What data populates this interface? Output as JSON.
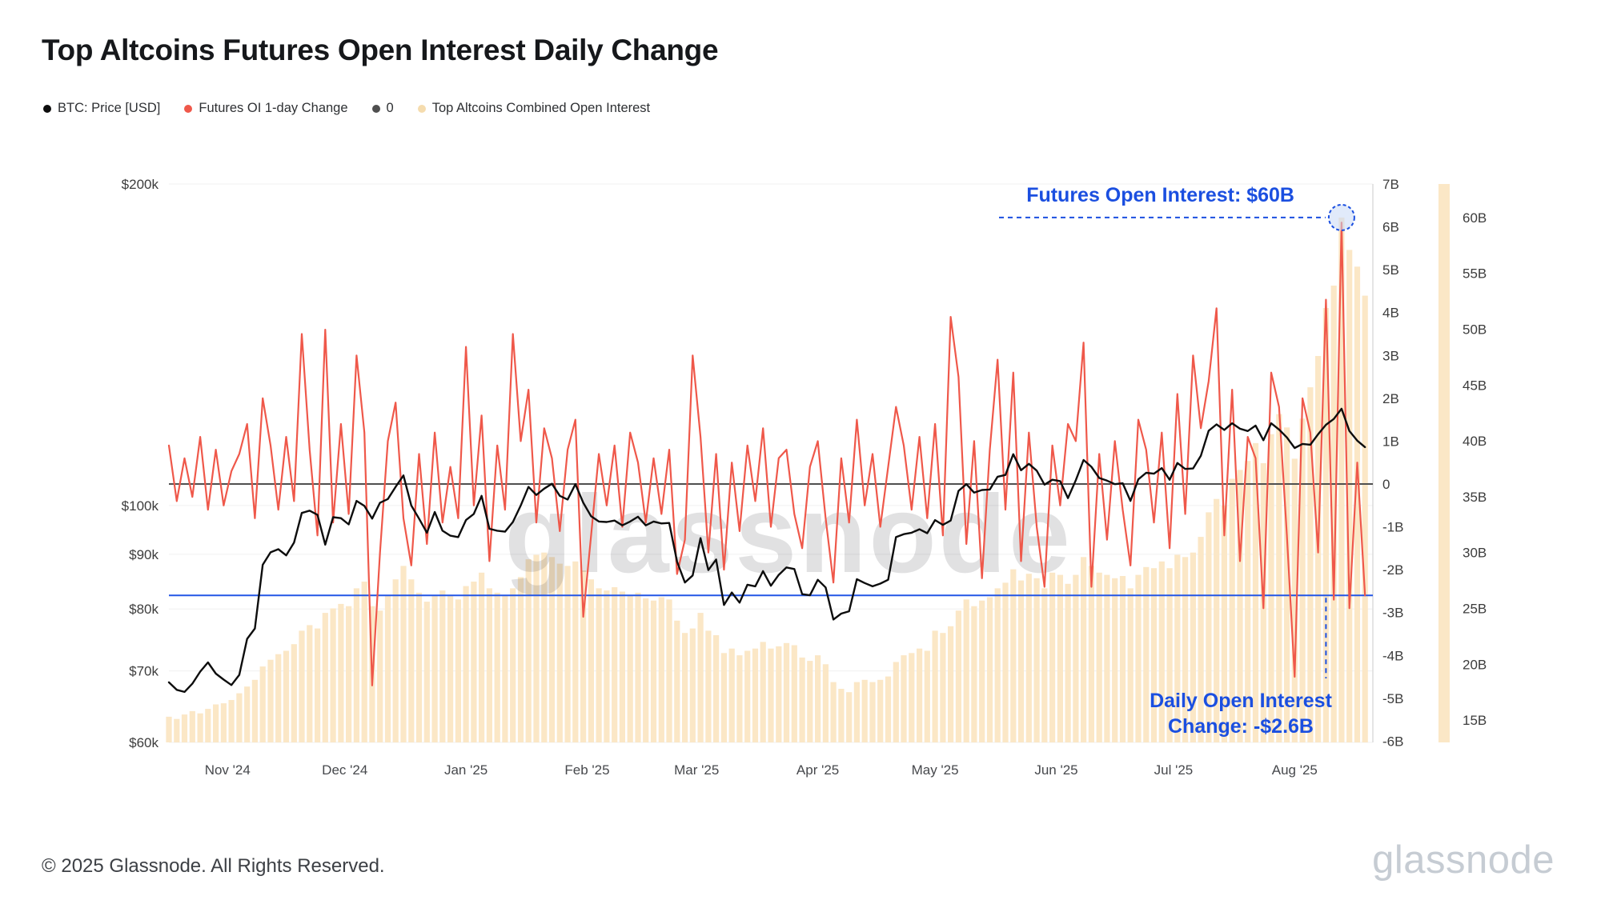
{
  "page": {
    "title": "Top Altcoins Futures Open Interest Daily Change",
    "footer_copyright": "© 2025 Glassnode. All Rights Reserved.",
    "brand_logo": "glassnode",
    "watermark": "glassnode"
  },
  "colors": {
    "btc_line": "#0d0d0d",
    "oi_change_line": "#ef584a",
    "zero_line": "#4f4f4f",
    "oi_bars": "#fbe7c6",
    "annotation_blue": "#1b4fe0",
    "threshold_line": "#2356e6",
    "axis_text": "#3c3c3c",
    "grid": "#f0f0f0",
    "plot_edge": "#dcdcdc",
    "watermark": "rgba(40,45,50,0.14)",
    "peak_marker_fill": "#c8d9f6"
  },
  "legend": {
    "items": [
      {
        "label": "BTC: Price [USD]",
        "color": "#0d0d0d"
      },
      {
        "label": "Futures OI 1-day Change",
        "color": "#ef584a"
      },
      {
        "label": "0",
        "color": "#4f4f4f"
      },
      {
        "label": "Top Altcoins Combined Open Interest",
        "color": "#f5dcae"
      }
    ]
  },
  "chart_data": {
    "type": "composite",
    "title": "Top Altcoins Futures Open Interest Daily Change",
    "x": {
      "total_days": 308,
      "step_days": 2,
      "start": "Oct 17 '24",
      "end": "Aug 21 '25",
      "month_ticks": [
        {
          "label": "Nov '24",
          "day": 15
        },
        {
          "label": "Dec '24",
          "day": 45
        },
        {
          "label": "Jan '25",
          "day": 76
        },
        {
          "label": "Feb '25",
          "day": 107
        },
        {
          "label": "Mar '25",
          "day": 135
        },
        {
          "label": "Apr '25",
          "day": 166
        },
        {
          "label": "May '25",
          "day": 196
        },
        {
          "label": "Jun '25",
          "day": 227
        },
        {
          "label": "Jul '25",
          "day": 257
        },
        {
          "label": "Aug '25",
          "day": 288
        }
      ]
    },
    "axes": {
      "price": {
        "side": "left",
        "scale": "log",
        "min": 60,
        "max": 200,
        "ticks": [
          {
            "v": 200,
            "label": "$200k"
          },
          {
            "v": 100,
            "label": "$100k"
          },
          {
            "v": 90,
            "label": "$90k"
          },
          {
            "v": 80,
            "label": "$80k"
          },
          {
            "v": 70,
            "label": "$70k"
          },
          {
            "v": 60,
            "label": "$60k"
          }
        ]
      },
      "change": {
        "side": "right",
        "scale": "linear",
        "min": -6.03,
        "max": 7,
        "ticks": [
          {
            "v": 7,
            "label": "7B"
          },
          {
            "v": 6,
            "label": "6B"
          },
          {
            "v": 5,
            "label": "5B"
          },
          {
            "v": 4,
            "label": "4B"
          },
          {
            "v": 3,
            "label": "3B"
          },
          {
            "v": 2,
            "label": "2B"
          },
          {
            "v": 1,
            "label": "1B"
          },
          {
            "v": 0,
            "label": "0"
          },
          {
            "v": -1,
            "label": "-1B"
          },
          {
            "v": -2,
            "label": "-2B"
          },
          {
            "v": -3,
            "label": "-3B"
          },
          {
            "v": -4,
            "label": "-4B"
          },
          {
            "v": -5,
            "label": "-5B"
          },
          {
            "v": -6,
            "label": "-6B"
          }
        ]
      },
      "oi": {
        "side": "far-right",
        "scale": "linear",
        "min": 13,
        "max": 63,
        "ticks": [
          {
            "v": 60,
            "label": "60B"
          },
          {
            "v": 55,
            "label": "55B"
          },
          {
            "v": 50,
            "label": "50B"
          },
          {
            "v": 45,
            "label": "45B"
          },
          {
            "v": 40,
            "label": "40B"
          },
          {
            "v": 35,
            "label": "35B"
          },
          {
            "v": 30,
            "label": "30B"
          },
          {
            "v": 25,
            "label": "25B"
          },
          {
            "v": 20,
            "label": "20B"
          },
          {
            "v": 15,
            "label": "15B"
          }
        ]
      }
    },
    "series": [
      {
        "key": "oi-bars",
        "name": "Top Altcoins Combined Open Interest",
        "type": "bar",
        "axis": "oi",
        "color": "#fbe7c6",
        "values": [
          15.3,
          15.1,
          15.5,
          15.8,
          15.6,
          16.0,
          16.4,
          16.5,
          16.8,
          17.4,
          18.0,
          18.6,
          19.8,
          20.4,
          20.9,
          21.2,
          21.8,
          23.0,
          23.5,
          23.2,
          24.6,
          25.0,
          25.4,
          25.2,
          26.8,
          27.4,
          25.2,
          24.8,
          26.2,
          27.6,
          28.8,
          27.6,
          26.4,
          25.6,
          26.2,
          26.6,
          26.2,
          25.8,
          27.0,
          27.4,
          28.2,
          26.8,
          26.4,
          26.2,
          26.8,
          27.8,
          29.4,
          29.8,
          30.0,
          29.6,
          29.0,
          28.8,
          29.2,
          28.4,
          27.6,
          26.8,
          26.6,
          26.9,
          26.5,
          26.2,
          26.4,
          25.9,
          25.7,
          26.0,
          25.8,
          23.9,
          22.8,
          23.2,
          24.6,
          23.0,
          22.6,
          21.0,
          21.4,
          20.8,
          21.2,
          21.4,
          22.0,
          21.4,
          21.6,
          21.9,
          21.7,
          20.6,
          20.3,
          20.8,
          20.0,
          18.4,
          17.8,
          17.5,
          18.4,
          18.6,
          18.4,
          18.6,
          18.9,
          20.2,
          20.8,
          21.0,
          21.4,
          21.2,
          23.0,
          22.8,
          23.4,
          24.8,
          25.8,
          25.2,
          25.7,
          26.0,
          26.8,
          27.3,
          28.5,
          27.5,
          28.1,
          27.7,
          26.8,
          28.2,
          28.0,
          27.2,
          28.0,
          29.6,
          28.8,
          28.2,
          28.0,
          27.7,
          27.9,
          26.8,
          28.0,
          28.7,
          28.6,
          29.2,
          28.6,
          29.8,
          29.6,
          30.0,
          31.4,
          33.6,
          34.8,
          34.2,
          36.6,
          37.4,
          38.2,
          39.8,
          38.0,
          40.6,
          42.4,
          41.2,
          38.4,
          42.0,
          44.8,
          47.6,
          51.9,
          53.9,
          60.0,
          57.1,
          55.6,
          53.0
        ]
      },
      {
        "key": "oi-change-line",
        "name": "Futures OI 1-day Change",
        "type": "line",
        "axis": "change",
        "color": "#ef584a",
        "width": 2.2,
        "values": [
          0.9,
          -0.4,
          0.6,
          -0.3,
          1.1,
          -0.6,
          0.8,
          -0.5,
          0.3,
          0.7,
          1.4,
          -0.8,
          2.0,
          0.9,
          -0.6,
          1.1,
          -0.4,
          3.5,
          0.8,
          -1.2,
          3.6,
          -0.9,
          1.4,
          -0.7,
          3.0,
          1.2,
          -4.7,
          -1.6,
          1.0,
          1.9,
          -0.8,
          -1.9,
          0.7,
          -1.4,
          1.2,
          -0.9,
          0.4,
          -0.8,
          3.2,
          -0.5,
          1.6,
          -1.8,
          0.9,
          -0.6,
          3.5,
          1.0,
          2.2,
          -0.9,
          1.3,
          0.6,
          -1.1,
          0.8,
          1.5,
          -3.1,
          -1.2,
          0.7,
          -0.5,
          0.9,
          -1.0,
          1.2,
          0.5,
          -0.9,
          0.6,
          -0.7,
          0.8,
          -2.1,
          -1.3,
          3.0,
          1.1,
          -1.6,
          0.7,
          -2.0,
          0.5,
          -1.1,
          0.9,
          -0.4,
          1.3,
          -1.0,
          0.6,
          0.8,
          -0.7,
          -1.5,
          0.4,
          1.0,
          -0.8,
          -2.3,
          0.6,
          -0.9,
          1.5,
          -0.5,
          0.7,
          -1.0,
          0.4,
          1.8,
          0.9,
          -0.6,
          1.1,
          -0.8,
          1.4,
          -1.2,
          3.9,
          2.5,
          -1.4,
          1.0,
          -2.2,
          0.8,
          2.9,
          -0.6,
          2.6,
          -1.8,
          1.2,
          -1.0,
          -2.4,
          0.9,
          -0.5,
          1.4,
          1.0,
          3.3,
          -2.4,
          0.7,
          -1.3,
          1.0,
          -0.6,
          -1.9,
          1.5,
          0.8,
          -0.9,
          1.2,
          -1.5,
          2.1,
          -0.7,
          3.0,
          1.3,
          2.4,
          4.1,
          -1.2,
          2.2,
          -1.8,
          1.1,
          0.6,
          -2.9,
          2.6,
          1.8,
          -1.2,
          -4.5,
          2.0,
          1.2,
          -1.6,
          4.3,
          -2.7,
          6.1,
          -2.9,
          0.5,
          -2.6
        ]
      },
      {
        "key": "btc-price-line",
        "name": "BTC: Price [USD]",
        "type": "line",
        "axis": "price",
        "color": "#0d0d0d",
        "width": 2.4,
        "values": [
          68.3,
          67.2,
          66.9,
          68.1,
          69.9,
          71.3,
          69.6,
          68.7,
          67.9,
          69.4,
          75.0,
          76.7,
          88.0,
          90.4,
          91.0,
          89.8,
          92.3,
          98.4,
          98.9,
          98.0,
          91.9,
          97.5,
          97.3,
          96.0,
          101.0,
          99.9,
          97.2,
          100.6,
          101.4,
          104.1,
          106.7,
          100.0,
          97.2,
          94.3,
          98.6,
          94.7,
          93.7,
          93.4,
          96.9,
          98.2,
          102.1,
          95.1,
          94.7,
          94.5,
          96.5,
          100.0,
          104.1,
          102.3,
          103.7,
          104.8,
          102.1,
          101.3,
          104.7,
          100.6,
          97.7,
          96.6,
          96.5,
          96.8,
          95.8,
          96.6,
          97.6,
          95.8,
          96.6,
          96.2,
          96.3,
          88.6,
          84.7,
          86.0,
          93.2,
          87.0,
          89.0,
          80.7,
          82.9,
          81.1,
          84.3,
          84.0,
          86.8,
          84.1,
          86.1,
          87.5,
          87.2,
          82.6,
          82.4,
          85.2,
          83.8,
          78.2,
          79.2,
          79.6,
          85.3,
          84.6,
          84.0,
          84.5,
          85.2,
          93.4,
          94.0,
          94.3,
          95.0,
          94.2,
          96.9,
          95.9,
          96.8,
          103.2,
          104.7,
          102.8,
          103.4,
          103.5,
          106.4,
          106.8,
          111.7,
          107.9,
          109.4,
          107.8,
          104.6,
          105.7,
          105.4,
          101.6,
          105.6,
          110.3,
          108.7,
          106.1,
          105.5,
          104.7,
          104.9,
          101.0,
          105.8,
          107.3,
          107.1,
          108.4,
          105.7,
          109.6,
          108.2,
          108.3,
          111.3,
          117.5,
          119.1,
          117.7,
          119.4,
          118.0,
          117.4,
          118.8,
          115.1,
          119.4,
          117.8,
          115.8,
          113.2,
          114.2,
          114.0,
          116.6,
          119.0,
          120.5,
          123.2,
          117.4,
          115.0,
          113.4
        ]
      }
    ],
    "reference_lines": [
      {
        "key": "zero-line",
        "axis": "change",
        "value": 0,
        "color": "#4f4f4f",
        "width": 2,
        "label": "0"
      },
      {
        "key": "daily-change-level-line",
        "axis": "change",
        "value": -2.6,
        "color": "#2356e6",
        "width": 2,
        "label": "-2.6B"
      }
    ],
    "annotations": {
      "futures_oi_peak": {
        "text": "Futures Open Interest: $60B",
        "point_day": 300,
        "point_axis": "oi",
        "point_value": 60
      },
      "daily_change": {
        "text_line1": "Daily Open Interest",
        "text_line2": "Change: -$2.6B",
        "connector_day": 296,
        "level": -2.6
      }
    }
  }
}
